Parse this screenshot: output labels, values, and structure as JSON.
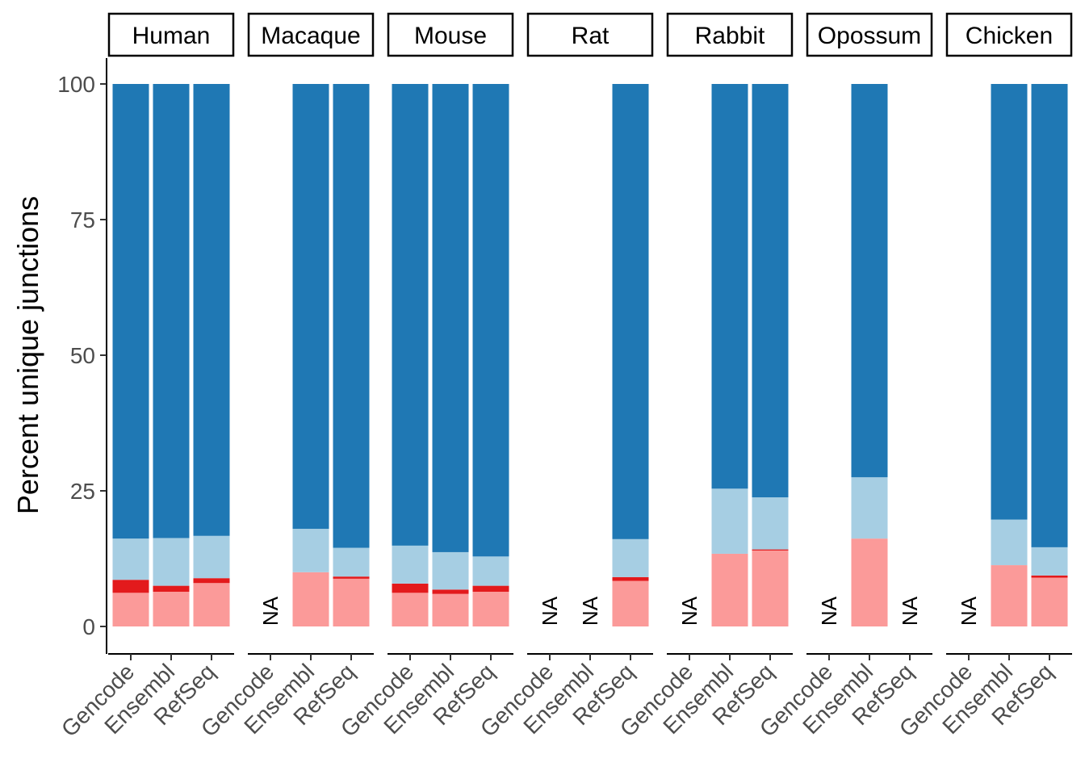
{
  "chart_data": {
    "type": "bar",
    "stacked": true,
    "facets": [
      "Human",
      "Macaque",
      "Mouse",
      "Rat",
      "Rabbit",
      "Opossum",
      "Chicken"
    ],
    "categories": [
      "Gencode",
      "Ensembl",
      "RefSeq"
    ],
    "ylabel": "Percent unique junctions",
    "xlabel": "",
    "ylim": [
      0,
      100
    ],
    "yticks": [
      0,
      25,
      50,
      75,
      100
    ],
    "na_label": "NA",
    "segment_colors": [
      "#fb9a99",
      "#e31a1c",
      "#a6cee3",
      "#1f78b4"
    ],
    "data": {
      "Human": {
        "Gencode": [
          6.2,
          2.4,
          7.6,
          83.8
        ],
        "Ensembl": [
          6.4,
          1.1,
          8.8,
          83.7
        ],
        "RefSeq": [
          8.0,
          0.9,
          7.8,
          83.3
        ]
      },
      "Macaque": {
        "Gencode": null,
        "Ensembl": [
          10.0,
          0.0,
          8.0,
          82.0
        ],
        "RefSeq": [
          8.8,
          0.4,
          5.3,
          85.5
        ]
      },
      "Mouse": {
        "Gencode": [
          6.2,
          1.7,
          7.0,
          85.1
        ],
        "Ensembl": [
          6.0,
          0.8,
          6.9,
          86.3
        ],
        "RefSeq": [
          6.4,
          1.1,
          5.4,
          87.1
        ]
      },
      "Rat": {
        "Gencode": null,
        "Ensembl": null,
        "RefSeq": [
          8.4,
          0.7,
          7.0,
          83.9
        ]
      },
      "Rabbit": {
        "Gencode": null,
        "Ensembl": [
          13.4,
          0.0,
          12.0,
          74.6
        ],
        "RefSeq": [
          14.0,
          0.2,
          9.6,
          76.2
        ]
      },
      "Opossum": {
        "Gencode": null,
        "Ensembl": [
          16.2,
          0.0,
          11.3,
          72.5
        ],
        "RefSeq": null
      },
      "Chicken": {
        "Gencode": null,
        "Ensembl": [
          11.3,
          0.0,
          8.4,
          80.3
        ],
        "RefSeq": [
          9.0,
          0.4,
          5.2,
          85.4
        ]
      }
    }
  }
}
